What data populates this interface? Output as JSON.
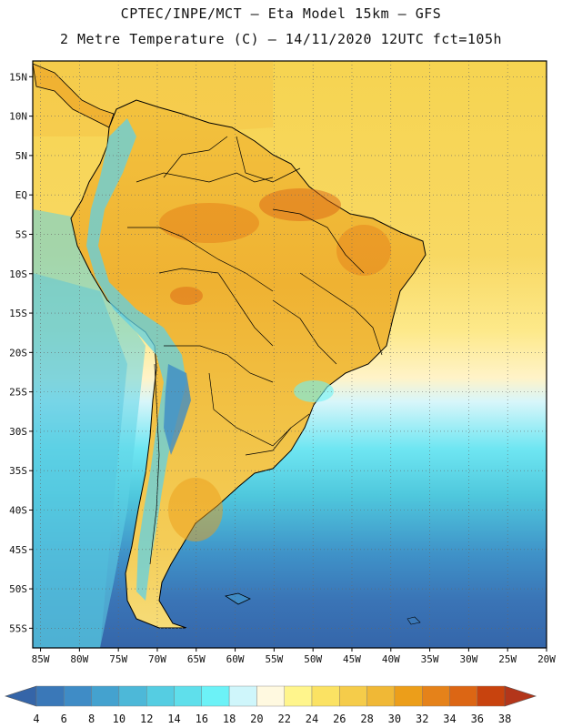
{
  "header": {
    "line1": "CPTEC/INPE/MCT –  Eta Model 15km – GFS",
    "line2": "2 Metre Temperature (C) – 14/11/2020 12UTC fct=105h"
  },
  "map": {
    "lat_labels": [
      "15N",
      "10N",
      "5N",
      "EQ",
      "5S",
      "10S",
      "15S",
      "20S",
      "25S",
      "30S",
      "35S",
      "40S",
      "45S",
      "50S",
      "55S"
    ],
    "lat_values": [
      15,
      10,
      5,
      0,
      -5,
      -10,
      -15,
      -20,
      -25,
      -30,
      -35,
      -40,
      -45,
      -50,
      -55
    ],
    "lon_labels": [
      "85W",
      "80W",
      "75W",
      "70W",
      "65W",
      "60W",
      "55W",
      "50W",
      "45W",
      "40W",
      "35W",
      "30W",
      "25W",
      "20W"
    ],
    "lon_values": [
      -85,
      -80,
      -75,
      -70,
      -65,
      -60,
      -55,
      -50,
      -45,
      -40,
      -35,
      -30,
      -25,
      -20
    ],
    "lat_range": [
      -57.5,
      17.0
    ],
    "lon_range": [
      -86.0,
      -20.0
    ]
  },
  "colorbar": {
    "labels": [
      "4",
      "6",
      "8",
      "10",
      "12",
      "14",
      "16",
      "18",
      "20",
      "22",
      "24",
      "26",
      "28",
      "30",
      "32",
      "34",
      "36",
      "38"
    ],
    "colors": [
      "#3a78b8",
      "#3f8cc6",
      "#44a2cf",
      "#4db8d8",
      "#55cde2",
      "#5fdfeb",
      "#6cf2f7",
      "#cff6fb",
      "#fff9e0",
      "#fff58c",
      "#fbe263",
      "#f5cc4a",
      "#f0b836",
      "#ec9e1a",
      "#e5821a",
      "#dc6614",
      "#c8430e"
    ],
    "low_color": "#3565a8",
    "high_color": "#b3361a"
  }
}
